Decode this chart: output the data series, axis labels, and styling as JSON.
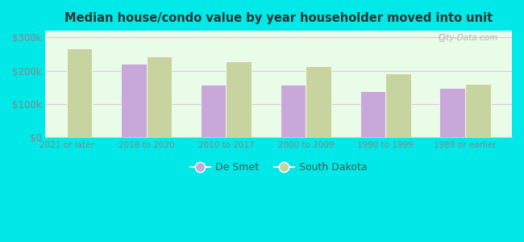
{
  "title": "Median house/condo value by year householder moved into unit",
  "categories": [
    "2021 or later",
    "2018 to 2020",
    "2010 to 2017",
    "2000 to 2009",
    "1990 to 1999",
    "1989 or earlier"
  ],
  "de_smet_values": [
    null,
    220000,
    158000,
    157000,
    138000,
    148000
  ],
  "south_dakota_values": [
    268000,
    243000,
    228000,
    213000,
    193000,
    160000
  ],
  "de_smet_color": "#c8a8d8",
  "south_dakota_color": "#c8d4a0",
  "bar_width": 0.32,
  "ylim": [
    0,
    320000
  ],
  "yticks": [
    0,
    100000,
    200000,
    300000
  ],
  "ytick_labels": [
    "$0",
    "$100k",
    "$200k",
    "$300k"
  ],
  "legend_labels": [
    "De Smet",
    "South Dakota"
  ],
  "plot_bg_color_topleft": "#e8fce8",
  "plot_bg_color_topright": "#f8fff8",
  "outer_background": "#00e8e8",
  "grid_color": "#e0c8d8",
  "watermark": "City-Data.com",
  "title_color": "#333333",
  "tick_color": "#888888"
}
